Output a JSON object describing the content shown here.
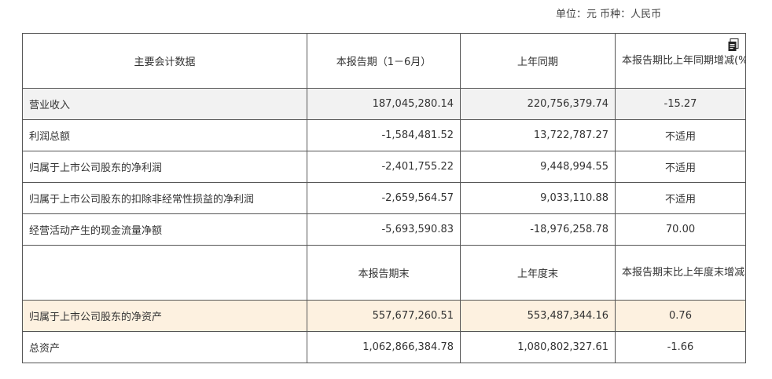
{
  "unit_line": "单位：元 币种：人民币",
  "icons": {
    "document": "document-icon"
  },
  "colors": {
    "shaded_row": "#f2f2f2",
    "highlight_row": "#fdf1e0",
    "border": "#555555"
  },
  "header1": {
    "col1": "主要会计数据",
    "col2": "本报告期（1－6月）",
    "col3": "上年同期",
    "col4": "本报告期比上年同期增减(%)"
  },
  "rows1": [
    {
      "label": "营业收入",
      "current": "187,045,280.14",
      "prior": "220,756,379.74",
      "change": "-15.27"
    },
    {
      "label": "利润总额",
      "current": "-1,584,481.52",
      "prior": "13,722,787.27",
      "change": "不适用"
    },
    {
      "label": "归属于上市公司股东的净利润",
      "current": "-2,401,755.22",
      "prior": "9,448,994.55",
      "change": "不适用"
    },
    {
      "label": "归属于上市公司股东的扣除非经常性损益的净利润",
      "current": "-2,659,564.57",
      "prior": "9,033,110.88",
      "change": "不适用"
    },
    {
      "label": "经营活动产生的现金流量净额",
      "current": "-5,693,590.83",
      "prior": "-18,976,258.78",
      "change": "70.00"
    }
  ],
  "header2": {
    "col1": "",
    "col2": "本报告期末",
    "col3": "上年度末",
    "col4": "本报告期末比上年度末增减(%)"
  },
  "rows2": [
    {
      "label": "归属于上市公司股东的净资产",
      "current": "557,677,260.51",
      "prior": "553,487,344.16",
      "change": "0.76"
    },
    {
      "label": "总资产",
      "current": "1,062,866,384.78",
      "prior": "1,080,802,327.61",
      "change": "-1.66"
    }
  ]
}
